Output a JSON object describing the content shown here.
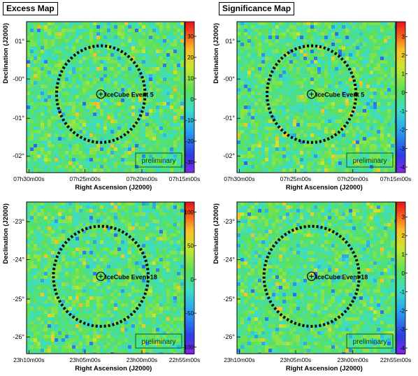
{
  "titles": {
    "left": "Excess Map",
    "right": "Significance Map"
  },
  "axis_labels": {
    "x": "Right Ascension (J2000)",
    "y": "Declination (J2000)"
  },
  "watermark": "preliminary",
  "chart_data": [
    {
      "type": "heatmap",
      "title": "Excess Map",
      "xlabel": "Right Ascension (J2000)",
      "ylabel": "Declination (J2000)",
      "source_label": "IceCube Event 5",
      "xticks": [
        "07h30m00s",
        "07h25m00s",
        "07h20m00s",
        "07h15m00s"
      ],
      "yticks": [
        "01°",
        "-00°",
        "-01°",
        "-02°"
      ],
      "colorbar_ticks": [
        "30",
        "20",
        "10",
        "0",
        "-10",
        "-20",
        "-30"
      ],
      "colorbar_range": [
        -35,
        37
      ]
    },
    {
      "type": "heatmap",
      "title": "Significance Map",
      "xlabel": "Right Ascension (J2000)",
      "ylabel": "Declination (J2000)",
      "source_label": "IceCube Event 5",
      "xticks": [
        "07h30m00s",
        "07h25m00s",
        "07h20m00s",
        "07h15m00s"
      ],
      "yticks": [
        "01°",
        "-00°",
        "-01°",
        "-02°"
      ],
      "colorbar_ticks": [
        "3",
        "2",
        "1",
        "0",
        "-1",
        "-2",
        "-3",
        "-4"
      ],
      "colorbar_range": [
        -4.3,
        3.8
      ]
    },
    {
      "type": "heatmap",
      "title": "Excess Map",
      "xlabel": "Right Ascension (J2000)",
      "ylabel": "Declination (J2000)",
      "source_label": "IceCube Event 18",
      "xticks": [
        "23h10m00s",
        "23h05m00s",
        "23h00m00s",
        "22h55m00s"
      ],
      "yticks": [
        "-23°",
        "-24°",
        "-25°",
        "-26°"
      ],
      "colorbar_ticks": [
        "100",
        "50",
        "0",
        "-50",
        "-100"
      ],
      "colorbar_range": [
        -110,
        115
      ]
    },
    {
      "type": "heatmap",
      "title": "Significance Map",
      "xlabel": "Right Ascension (J2000)",
      "ylabel": "Declination (J2000)",
      "source_label": "IceCube Event 18",
      "xticks": [
        "23h10m00s",
        "23h05m00s",
        "23h00m00s",
        "22h55m00s"
      ],
      "yticks": [
        "-23°",
        "-24°",
        "-25°",
        "-26°"
      ],
      "colorbar_ticks": [
        "3",
        "2",
        "1",
        "0",
        "-1",
        "-2",
        "-3",
        "-4"
      ],
      "colorbar_range": [
        -4.3,
        3.8
      ]
    }
  ]
}
